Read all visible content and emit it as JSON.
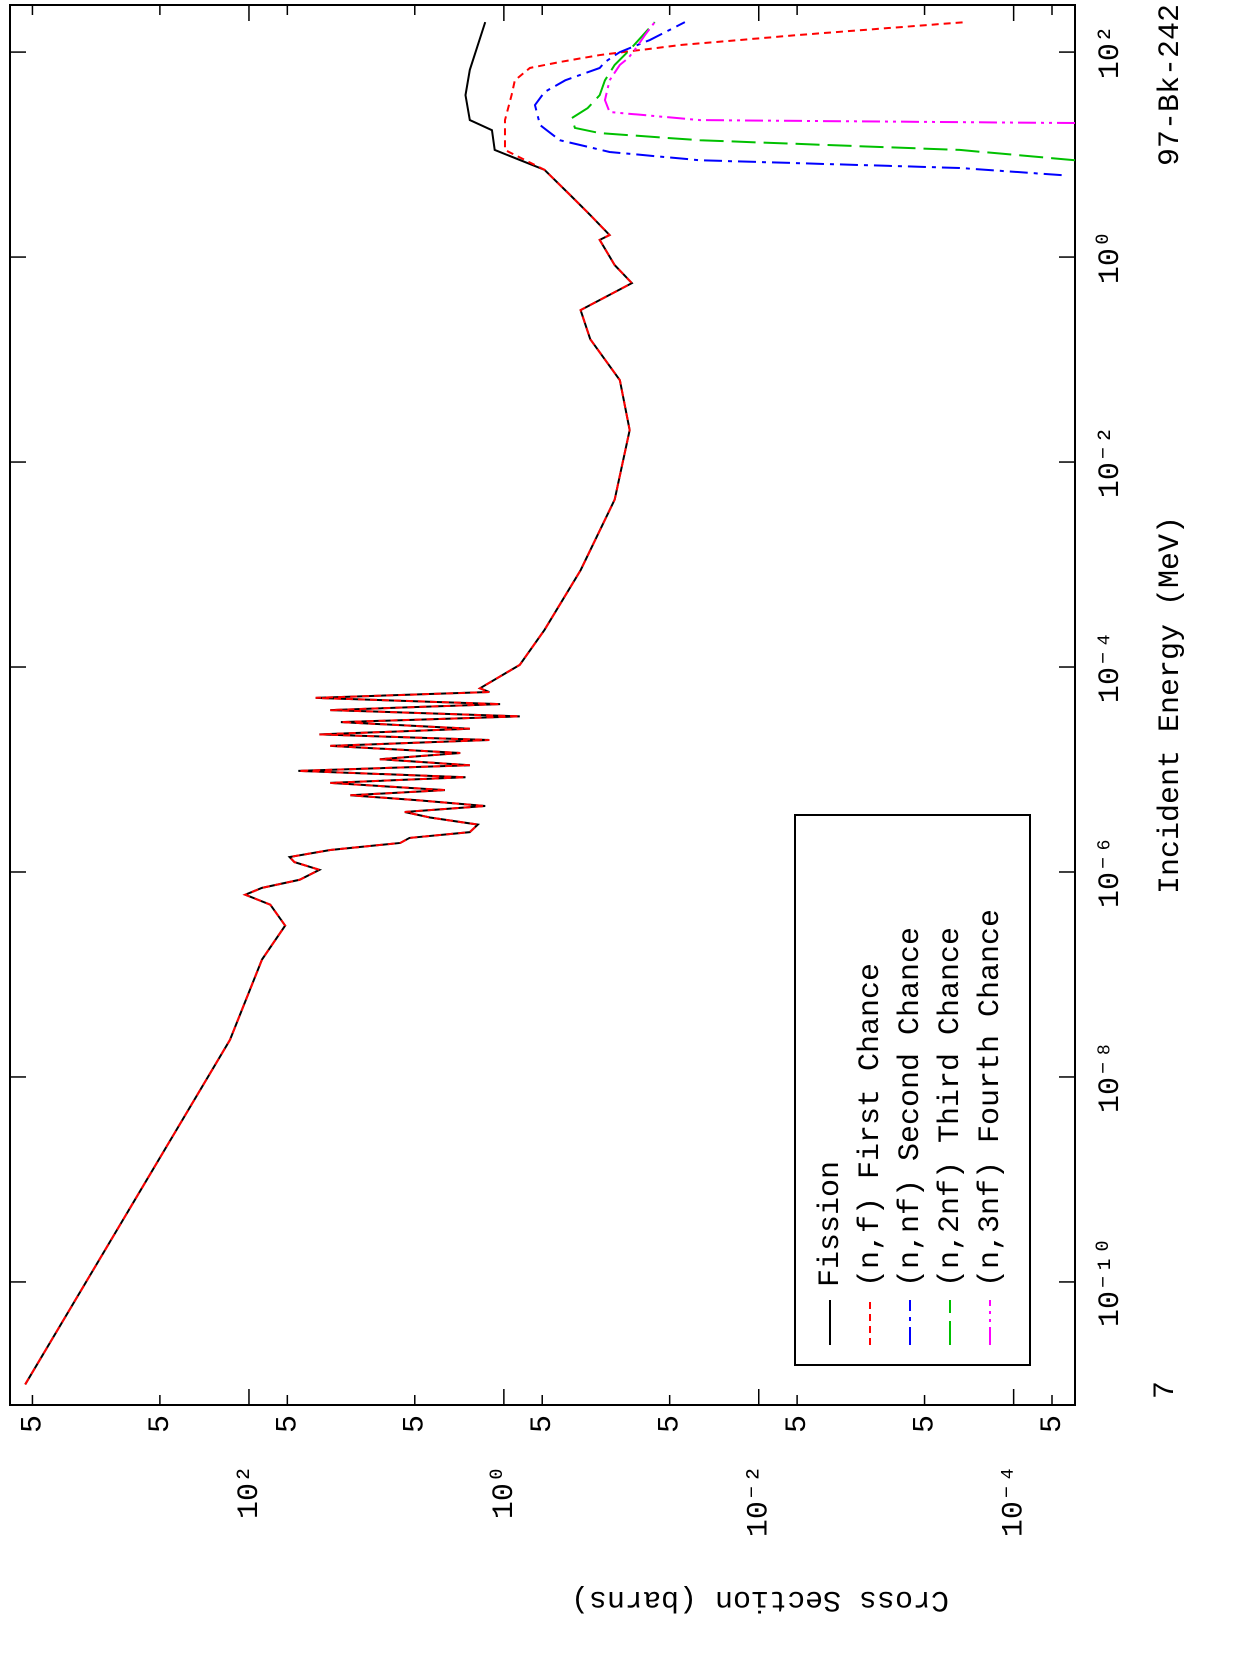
{
  "chart_data": {
    "type": "line",
    "title": "97-Bk-242",
    "annotation": "7",
    "x_label": "Incident Energy (MeV)",
    "y_label": "Cross Section (barns)",
    "xscale": "log",
    "yscale": "log",
    "legend": "lower left",
    "xlim": [
      6.3e-12,
      288
    ],
    "ylim": [
      3.3e-05,
      7500
    ],
    "xticks": [
      {
        "value": 1e-10,
        "label": "10⁻¹⁰"
      },
      {
        "value": 1e-08,
        "label": "10⁻⁸"
      },
      {
        "value": 1e-06,
        "label": "10⁻⁶"
      },
      {
        "value": 0.0001,
        "label": "10⁻⁴"
      },
      {
        "value": 0.01,
        "label": "10⁻²"
      },
      {
        "value": 1,
        "label": "10⁰"
      },
      {
        "value": 100,
        "label": "10²"
      }
    ],
    "yticks": [
      {
        "value": 5e-05,
        "label": "5"
      },
      {
        "value": 0.0001,
        "label": "10⁻⁴"
      },
      {
        "value": 0.0005,
        "label": "5"
      },
      {
        "value": 0.005,
        "label": "5"
      },
      {
        "value": 0.01,
        "label": "10⁻²"
      },
      {
        "value": 0.05,
        "label": "5"
      },
      {
        "value": 0.5,
        "label": "5"
      },
      {
        "value": 1,
        "label": "10⁰"
      },
      5,
      {
        "value": 50,
        "label": "5"
      },
      {
        "value": 100,
        "label": "10²"
      },
      {
        "value": 500,
        "label": "5"
      },
      {
        "value": 5000,
        "label": "5"
      }
    ],
    "series": [
      {
        "name": "Fission",
        "color": "#000000",
        "dash": "none",
        "x": [
          1e-11,
          2.3e-08,
          1.4e-07,
          3e-07,
          4.8e-07,
          6e-07,
          7e-07,
          8.4e-07,
          1.05e-06,
          1.25e-06,
          1.4e-06,
          1.64e-06,
          1.92e-06,
          2.15e-06,
          2.45e-06,
          2.9e-06,
          3.4e-06,
          3.85e-06,
          4.4e-06,
          5e-06,
          5.6e-06,
          6.3e-06,
          7.4e-06,
          8.4e-06,
          9.7e-06,
          1.1e-05,
          1.26e-05,
          1.45e-05,
          1.7e-05,
          1.94e-05,
          2.2e-05,
          2.5e-05,
          2.9e-05,
          3.3e-05,
          3.8e-05,
          4.35e-05,
          5e-05,
          5.7e-05,
          6.2e-05,
          0.000105,
          0.00023,
          0.00088,
          0.0043,
          0.0205,
          0.063,
          0.158,
          0.304,
          0.557,
          0.835,
          1.47,
          1.64,
          2.57,
          4.0,
          7.1,
          11.1,
          17.3,
          21.7,
          38,
          67,
          196
        ],
        "values": [
          5700,
          141,
          79,
          52,
          68,
          107,
          79,
          40,
          28,
          44,
          48,
          23,
          6.5,
          5.5,
          1.85,
          1.6,
          3.8,
          6.0,
          1.4,
          4.6,
          16,
          2.9,
          23,
          2.0,
          41,
          1.85,
          9.4,
          2.2,
          23,
          1.3,
          28,
          1.85,
          19,
          0.75,
          23,
          1.07,
          30,
          1.3,
          1.54,
          0.75,
          0.48,
          0.25,
          0.135,
          0.103,
          0.123,
          0.21,
          0.25,
          0.099,
          0.135,
          0.177,
          0.148,
          0.21,
          0.3,
          0.48,
          1.18,
          1.24,
          1.85,
          2.0,
          1.85,
          1.4
        ]
      },
      {
        "name": "(n,f) First Chance",
        "color": "#ff0000",
        "dash": "7 5",
        "x": [
          1e-11,
          2.3e-08,
          1.4e-07,
          3e-07,
          4.8e-07,
          6e-07,
          7e-07,
          8.4e-07,
          1.05e-06,
          1.25e-06,
          1.4e-06,
          1.64e-06,
          1.92e-06,
          2.15e-06,
          2.45e-06,
          2.9e-06,
          3.4e-06,
          3.85e-06,
          4.4e-06,
          5e-06,
          5.6e-06,
          6.3e-06,
          7.4e-06,
          8.4e-06,
          9.7e-06,
          1.1e-05,
          1.26e-05,
          1.45e-05,
          1.7e-05,
          1.94e-05,
          2.2e-05,
          2.5e-05,
          2.9e-05,
          3.3e-05,
          3.8e-05,
          4.35e-05,
          5e-05,
          5.7e-05,
          6.2e-05,
          0.000105,
          0.00023,
          0.00088,
          0.0043,
          0.0205,
          0.063,
          0.158,
          0.304,
          0.557,
          0.835,
          1.47,
          1.64,
          2.57,
          4.0,
          7.1,
          11.1,
          21.7,
          38,
          53,
          70,
          80,
          93.5,
          117,
          147,
          196
        ],
        "values": [
          5700,
          141,
          79,
          52,
          68,
          107,
          79,
          40,
          28,
          44,
          48,
          23,
          6.5,
          5.5,
          1.85,
          1.6,
          3.8,
          6.0,
          1.4,
          4.6,
          16,
          2.9,
          23,
          2.0,
          41,
          1.85,
          9.4,
          2.2,
          23,
          1.3,
          28,
          1.85,
          19,
          0.75,
          23,
          1.07,
          30,
          1.3,
          1.54,
          0.75,
          0.48,
          0.25,
          0.135,
          0.103,
          0.123,
          0.21,
          0.25,
          0.099,
          0.135,
          0.177,
          0.148,
          0.21,
          0.3,
          0.48,
          0.98,
          0.98,
          0.87,
          0.82,
          0.625,
          0.364,
          0.177,
          0.0417,
          0.0048,
          0.00024
        ]
      },
      {
        "name": "(n,nf) Second Chance",
        "color": "#0000ff",
        "dash": "18 6 4 6",
        "x": [
          6.3,
          7.4,
          8.8,
          10.6,
          13.8,
          19.4,
          30.4,
          40.7,
          53,
          70,
          80,
          100,
          131,
          196
        ],
        "values": [
          4.2e-05,
          0.000265,
          0.029,
          0.148,
          0.364,
          0.52,
          0.57,
          0.48,
          0.33,
          0.177,
          0.161,
          0.123,
          0.0716,
          0.038
        ]
      },
      {
        "name": "(n,2nf) Third Chance",
        "color": "#00c000",
        "dash": "24 8",
        "x": [
          8.8,
          11.1,
          13.8,
          16.2,
          18.2,
          22.7,
          28.4,
          38,
          53,
          75,
          105,
          196
        ],
        "values": [
          3.3e-05,
          0.000265,
          0.029,
          0.177,
          0.277,
          0.293,
          0.22,
          0.177,
          0.161,
          0.135,
          0.103,
          0.0655
        ]
      },
      {
        "name": "(n,3nf) Fourth Chance",
        "color": "#ff00ff",
        "dash": "18 5 3 5 3 5",
        "x": [
          20.3,
          21.7,
          26,
          34,
          53,
          75,
          87,
          105,
          147,
          196
        ],
        "values": [
          3.3e-05,
          0.029,
          0.148,
          0.161,
          0.148,
          0.123,
          0.106,
          0.094,
          0.078,
          0.0655
        ]
      }
    ]
  }
}
